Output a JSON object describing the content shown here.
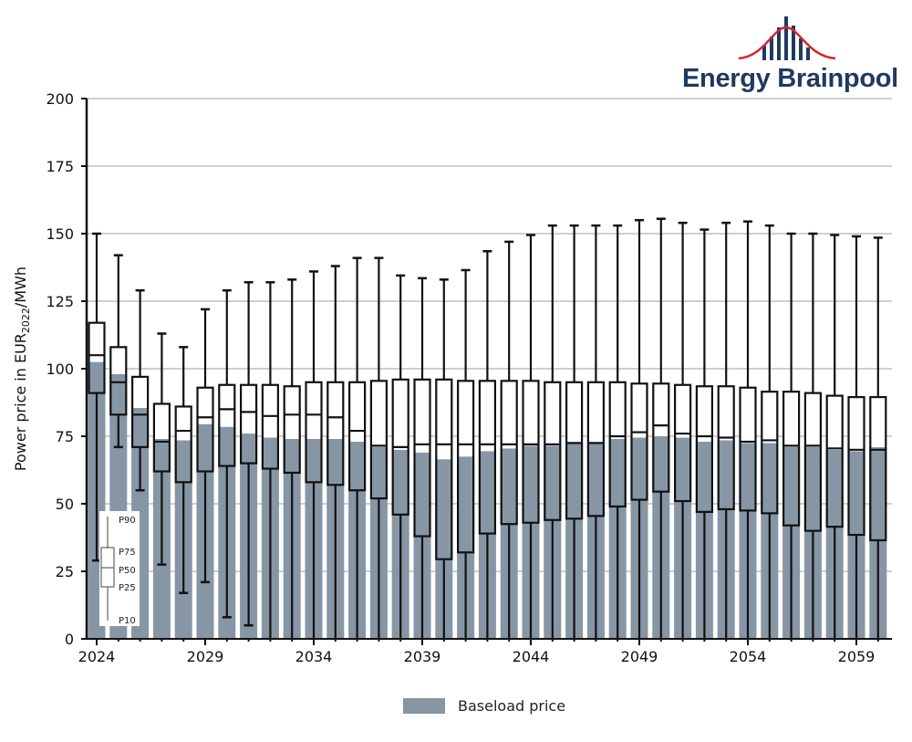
{
  "brand": {
    "name": "Energy Brainpool",
    "colors": {
      "text": "#1f3a5f",
      "curve": "#d7262e",
      "bars": "#1f3a5f"
    }
  },
  "chart_data": {
    "type": "boxplot-bar",
    "title": "",
    "xlabel": "",
    "ylabel": {
      "prefix": "Power price in EUR",
      "sub": "2022",
      "suffix": "/MWh"
    },
    "ylim": [
      0,
      200
    ],
    "yticks": [
      0,
      25,
      50,
      75,
      100,
      125,
      150,
      175,
      200
    ],
    "xticks": [
      "2024",
      "2029",
      "2034",
      "2039",
      "2044",
      "2049",
      "2054",
      "2059"
    ],
    "grid": "horizontal",
    "bar_color": "#8796a5",
    "legend": {
      "position": "bottom",
      "items": [
        {
          "label": "Baseload price"
        }
      ]
    },
    "percentile_key": {
      "position": "bottom-left",
      "labels": [
        "P90",
        "P75",
        "P50",
        "P25",
        "P10"
      ]
    },
    "years": [
      2024,
      2025,
      2026,
      2027,
      2028,
      2029,
      2030,
      2031,
      2032,
      2033,
      2034,
      2035,
      2036,
      2037,
      2038,
      2039,
      2040,
      2041,
      2042,
      2043,
      2044,
      2045,
      2046,
      2047,
      2048,
      2049,
      2050,
      2051,
      2052,
      2053,
      2054,
      2055,
      2056,
      2057,
      2058,
      2059,
      2060
    ],
    "series": [
      {
        "name": "Baseload price",
        "values": [
          102.5,
          98,
          85.5,
          74,
          73.5,
          79.5,
          78.5,
          76,
          74.5,
          74,
          74,
          74,
          73,
          71,
          70,
          69,
          66.5,
          67.5,
          69.5,
          70.5,
          71.5,
          71.5,
          72.5,
          72.5,
          74,
          74.5,
          75,
          74.5,
          73,
          73.5,
          72.5,
          72.5,
          71,
          71,
          70,
          69.5,
          71
        ]
      },
      {
        "name": "P90",
        "values": [
          150,
          142,
          129,
          113,
          108,
          122,
          129,
          132,
          132,
          133,
          136,
          138,
          141,
          141,
          134.5,
          133.5,
          133,
          136.5,
          143.5,
          147,
          149.5,
          153,
          153,
          153,
          153,
          155,
          155.5,
          154,
          151.5,
          154,
          154.5,
          153,
          150,
          150,
          149.5,
          149,
          148.5
        ]
      },
      {
        "name": "P75",
        "values": [
          117,
          108,
          97,
          87,
          86,
          93,
          94,
          94,
          94,
          93.5,
          95,
          95,
          95,
          95.5,
          96,
          96,
          96,
          95.5,
          95.5,
          95.5,
          95.5,
          95,
          95,
          95,
          95,
          94.5,
          94.5,
          94,
          93.5,
          93.5,
          93,
          91.5,
          91.5,
          91,
          90,
          89.5,
          89.5
        ]
      },
      {
        "name": "P50",
        "values": [
          105,
          95,
          83,
          73,
          77,
          82,
          85,
          84,
          82.5,
          83,
          83,
          82,
          77,
          71.5,
          71,
          72,
          72,
          72,
          72,
          72,
          72,
          72,
          72.5,
          72.5,
          75,
          76.5,
          79,
          76,
          75,
          74.5,
          73,
          73.5,
          71.5,
          71.5,
          70.5,
          70,
          70
        ]
      },
      {
        "name": "P25",
        "values": [
          91,
          83,
          71,
          62,
          58,
          62,
          64,
          65,
          63,
          61.5,
          58,
          57,
          55,
          52,
          46,
          38,
          29.5,
          32,
          39,
          42.5,
          43,
          44,
          44.5,
          45.5,
          49,
          51.5,
          54.5,
          51,
          47,
          48,
          47.5,
          46.5,
          42,
          40,
          41.5,
          38.5,
          36.5
        ]
      },
      {
        "name": "P10",
        "values": [
          29,
          71,
          55,
          27.5,
          17,
          21,
          8,
          5,
          0,
          0,
          0,
          0,
          0,
          0,
          0,
          0,
          0,
          0,
          0,
          0,
          0,
          0,
          0,
          0,
          0,
          0,
          0,
          0,
          0,
          0,
          0,
          0,
          0,
          0,
          0,
          0,
          0
        ]
      }
    ]
  }
}
